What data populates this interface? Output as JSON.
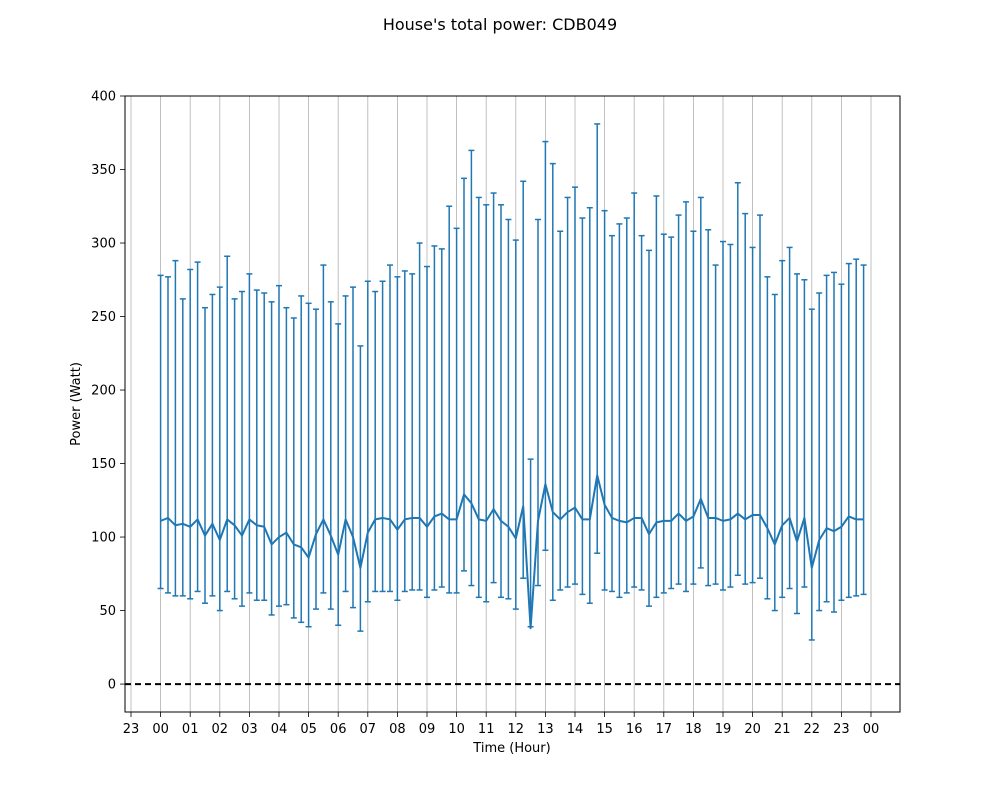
{
  "chart_data": {
    "type": "line",
    "title": "House's total power: CDB049",
    "xlabel": "Time (Hour)",
    "ylabel": "Power (Watt)",
    "ylim": [
      -19,
      400
    ],
    "y_ticks": [
      0,
      50,
      100,
      150,
      200,
      250,
      300,
      350,
      400
    ],
    "x_tick_labels": [
      "23",
      "00",
      "01",
      "02",
      "03",
      "04",
      "05",
      "06",
      "07",
      "08",
      "09",
      "10",
      "11",
      "12",
      "13",
      "14",
      "15",
      "16",
      "17",
      "18",
      "19",
      "20",
      "21",
      "22",
      "23",
      "00"
    ],
    "x_grid": true,
    "y_grid": false,
    "reference_line": {
      "y": 0,
      "style": "dashed",
      "color": "#000000"
    },
    "series": [
      {
        "color": "#1f77b4",
        "interval_hours": 0.25,
        "mean": [
          111,
          113,
          108,
          109,
          107,
          112,
          101,
          109,
          98,
          112,
          108,
          101,
          112,
          108,
          107,
          95,
          100,
          103,
          95,
          93,
          86,
          102,
          112,
          101,
          88,
          112,
          100,
          79,
          103,
          112,
          113,
          112,
          105,
          112,
          113,
          113,
          107,
          114,
          116,
          112,
          112,
          129,
          123,
          112,
          111,
          119,
          111,
          107,
          99,
          121,
          38,
          111,
          136,
          117,
          112,
          117,
          120,
          112,
          112,
          142,
          122,
          113,
          111,
          110,
          113,
          113,
          102,
          110,
          111,
          111,
          116,
          111,
          114,
          126,
          113,
          113,
          111,
          112,
          116,
          112,
          115,
          115,
          106,
          95,
          108,
          113,
          97,
          113,
          79,
          98,
          106,
          104,
          107,
          114,
          112,
          112
        ],
        "upper": [
          278,
          277,
          288,
          262,
          282,
          287,
          256,
          265,
          270,
          291,
          262,
          267,
          279,
          268,
          266,
          260,
          271,
          256,
          249,
          264,
          259,
          255,
          285,
          260,
          245,
          264,
          270,
          230,
          274,
          267,
          274,
          285,
          277,
          281,
          279,
          300,
          284,
          298,
          296,
          325,
          310,
          344,
          363,
          331,
          326,
          334,
          326,
          316,
          302,
          342,
          153,
          316,
          369,
          354,
          308,
          331,
          338,
          317,
          324,
          381,
          322,
          305,
          313,
          317,
          334,
          305,
          295,
          332,
          306,
          304,
          319,
          328,
          308,
          331,
          309,
          285,
          301,
          299,
          341,
          320,
          297,
          319,
          277,
          265,
          288,
          297,
          279,
          275,
          255,
          266,
          278,
          280,
          272,
          286,
          289,
          285
        ],
        "lower": [
          65,
          62,
          60,
          60,
          58,
          63,
          55,
          60,
          50,
          63,
          58,
          53,
          62,
          57,
          57,
          47,
          53,
          54,
          45,
          42,
          39,
          51,
          62,
          51,
          40,
          63,
          52,
          36,
          56,
          63,
          63,
          63,
          57,
          63,
          64,
          64,
          59,
          64,
          66,
          62,
          62,
          77,
          67,
          59,
          56,
          69,
          59,
          58,
          51,
          72,
          39,
          67,
          91,
          57,
          64,
          66,
          68,
          61,
          55,
          89,
          64,
          63,
          59,
          62,
          66,
          64,
          53,
          59,
          62,
          65,
          68,
          63,
          68,
          79,
          67,
          68,
          64,
          66,
          74,
          68,
          69,
          72,
          58,
          50,
          59,
          65,
          48,
          66,
          30,
          50,
          56,
          49,
          57,
          59,
          60,
          61
        ]
      }
    ]
  }
}
